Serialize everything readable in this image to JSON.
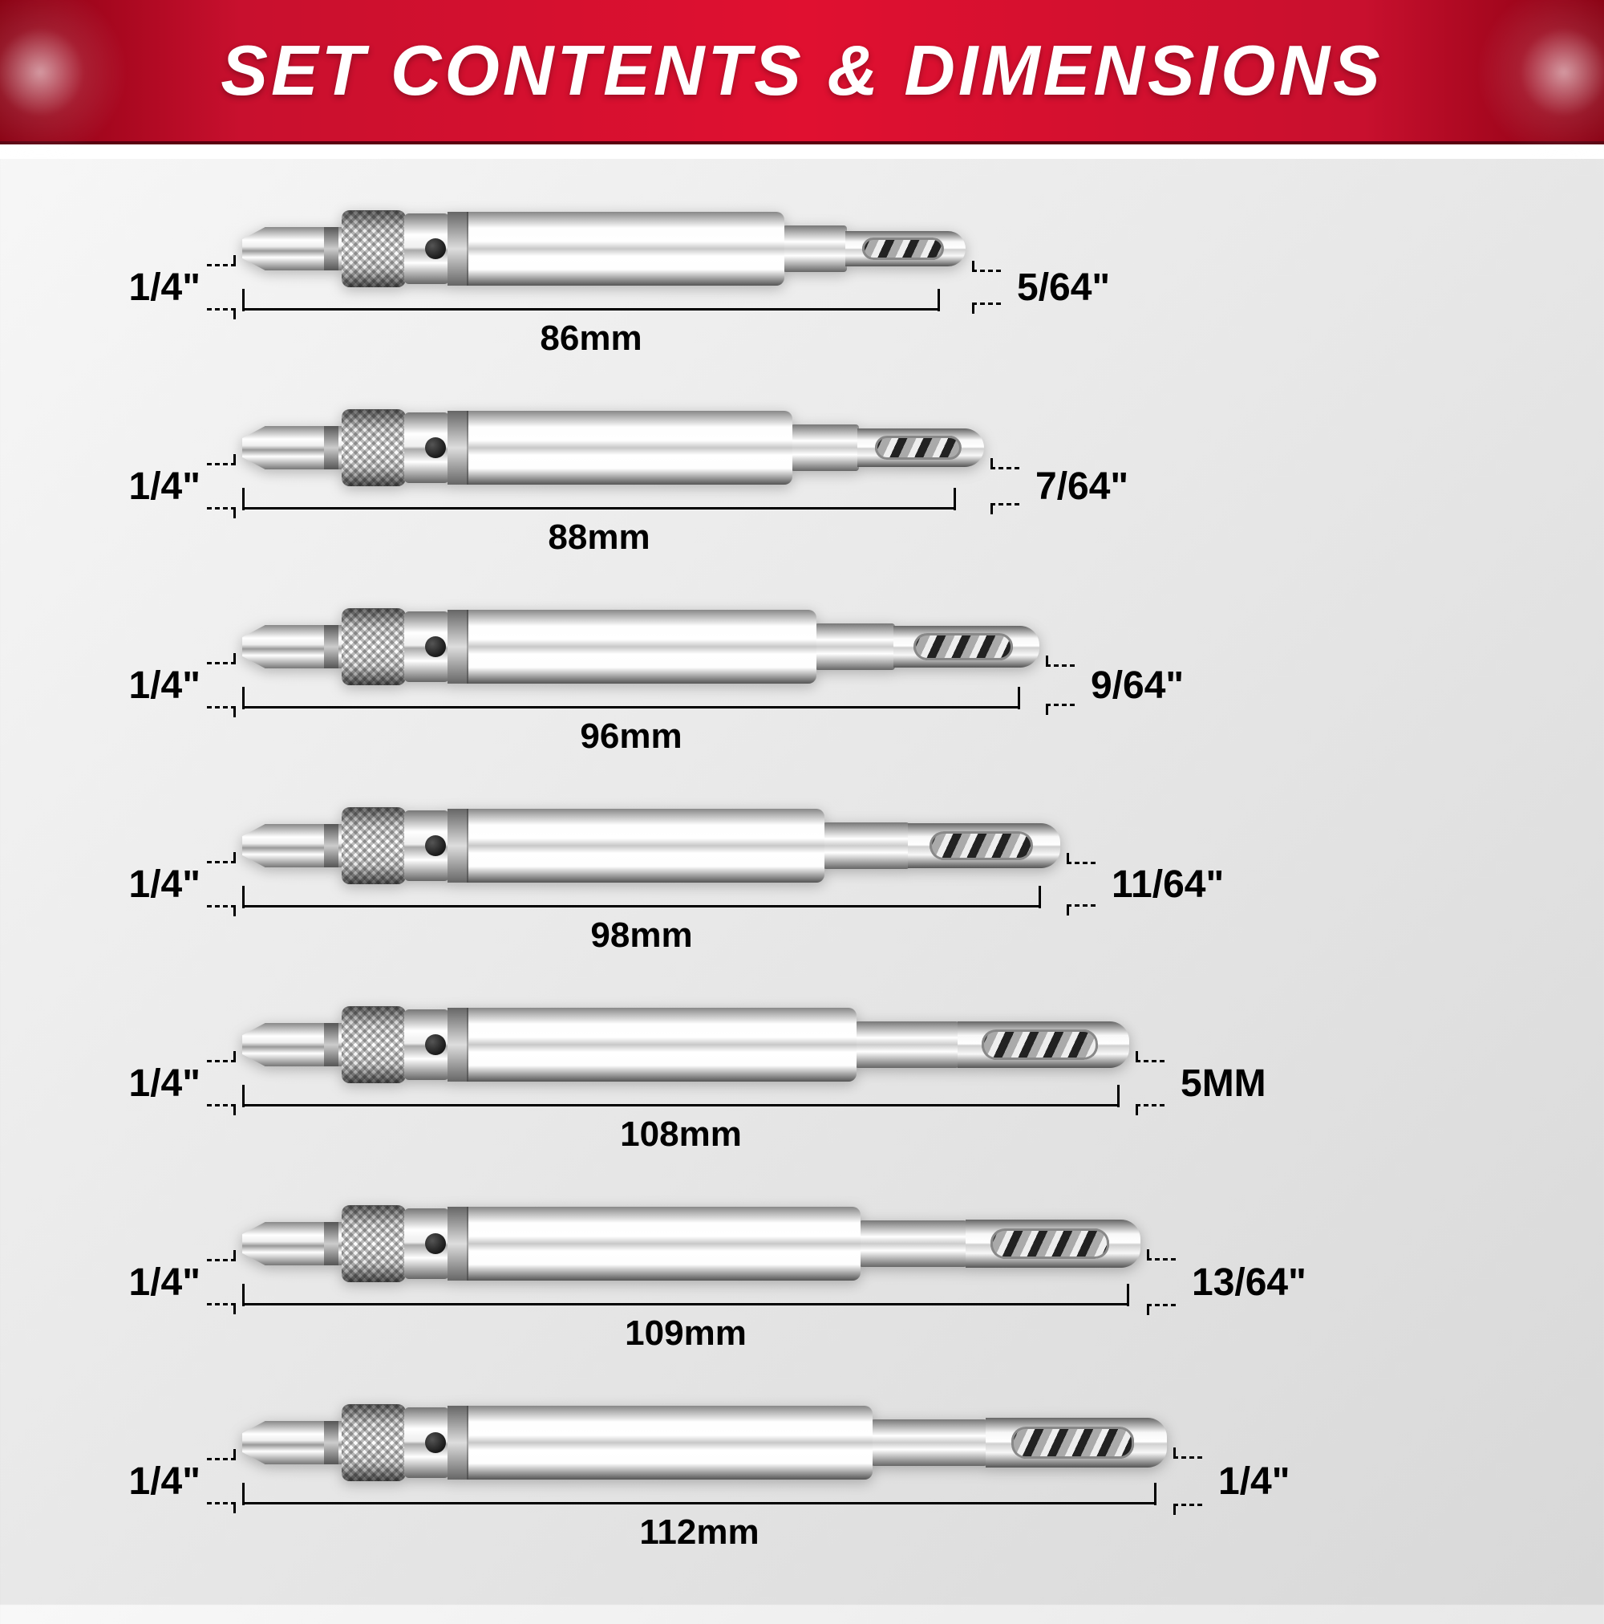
{
  "header": {
    "title": "SET CONTENTS & DIMENSIONS",
    "bg_gradient": [
      "#8a0012",
      "#c8102e",
      "#e01030",
      "#c8102e",
      "#8a0012"
    ],
    "title_color": "#ffffff",
    "title_fontsize": 88
  },
  "background_gradient": [
    "#f8f8f8",
    "#e8e8e8",
    "#d8d8d8"
  ],
  "label_fontsize": 48,
  "length_label_fontsize": 44,
  "bits": [
    {
      "shank": "1/4\"",
      "tip_size": "5/64\"",
      "length_label": "86mm",
      "body_w": 420,
      "neck_w": 80,
      "tip_w": 150,
      "tip_h": 44,
      "dim_line_left": 0,
      "dim_line_w": 870
    },
    {
      "shank": "1/4\"",
      "tip_size": "7/64\"",
      "length_label": "88mm",
      "body_w": 430,
      "neck_w": 85,
      "tip_w": 158,
      "tip_h": 48,
      "dim_line_left": 0,
      "dim_line_w": 890
    },
    {
      "shank": "1/4\"",
      "tip_size": "9/64\"",
      "length_label": "96mm",
      "body_w": 460,
      "neck_w": 100,
      "tip_w": 182,
      "tip_h": 52,
      "dim_line_left": 0,
      "dim_line_w": 970
    },
    {
      "shank": "1/4\"",
      "tip_size": "11/64\"",
      "length_label": "98mm",
      "body_w": 470,
      "neck_w": 108,
      "tip_w": 190,
      "tip_h": 56,
      "dim_line_left": 0,
      "dim_line_w": 996
    },
    {
      "shank": "1/4\"",
      "tip_size": "5MM",
      "length_label": "108mm",
      "body_w": 510,
      "neck_w": 130,
      "tip_w": 214,
      "tip_h": 58,
      "dim_line_left": 0,
      "dim_line_w": 1094
    },
    {
      "shank": "1/4\"",
      "tip_size": "13/64\"",
      "length_label": "109mm",
      "body_w": 515,
      "neck_w": 135,
      "tip_w": 218,
      "tip_h": 60,
      "dim_line_left": 0,
      "dim_line_w": 1106
    },
    {
      "shank": "1/4\"",
      "tip_size": "1/4\"",
      "length_label": "112mm",
      "body_w": 530,
      "neck_w": 145,
      "tip_w": 226,
      "tip_h": 62,
      "dim_line_left": 0,
      "dim_line_w": 1140
    }
  ],
  "bit_part_colors": {
    "metal_highlight": "#ffffff",
    "metal_mid": "#c8c8c8",
    "metal_dark": "#555555",
    "screw_hole": "#000000"
  }
}
